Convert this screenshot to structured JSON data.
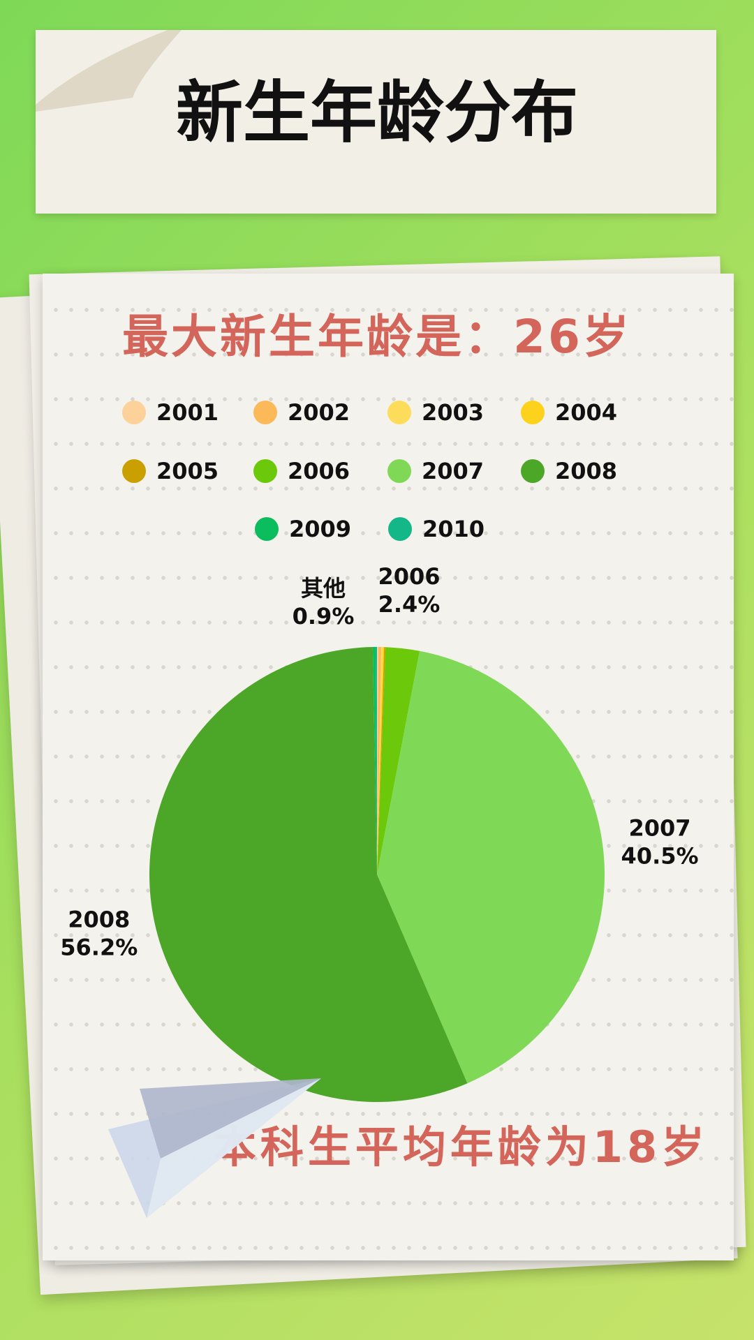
{
  "chart_data": {
    "type": "pie",
    "title": "新生年龄分布",
    "subtitle": "最大新生年龄是：26岁",
    "footnote": "本科生平均年龄为18岁",
    "categories": [
      "2001",
      "2002",
      "2003",
      "2004",
      "2005",
      "2006",
      "2007",
      "2008",
      "2009",
      "2010"
    ],
    "values": [
      0.1,
      0.2,
      0.1,
      0.1,
      0.1,
      2.4,
      40.5,
      56.2,
      0.2,
      0.1
    ],
    "value_labels": [
      null,
      null,
      null,
      null,
      null,
      "2.4%",
      "40.5%",
      "56.2%",
      null,
      null
    ],
    "colors": [
      "#fdd29a",
      "#fbb95a",
      "#fddc5c",
      "#fcd21d",
      "#c9a000",
      "#6cc80a",
      "#7fd957",
      "#4ca628",
      "#0bbd5c",
      "#13b788"
    ],
    "other_label": {
      "name": "其他",
      "value_label": "0.9%"
    },
    "legend": "top"
  }
}
